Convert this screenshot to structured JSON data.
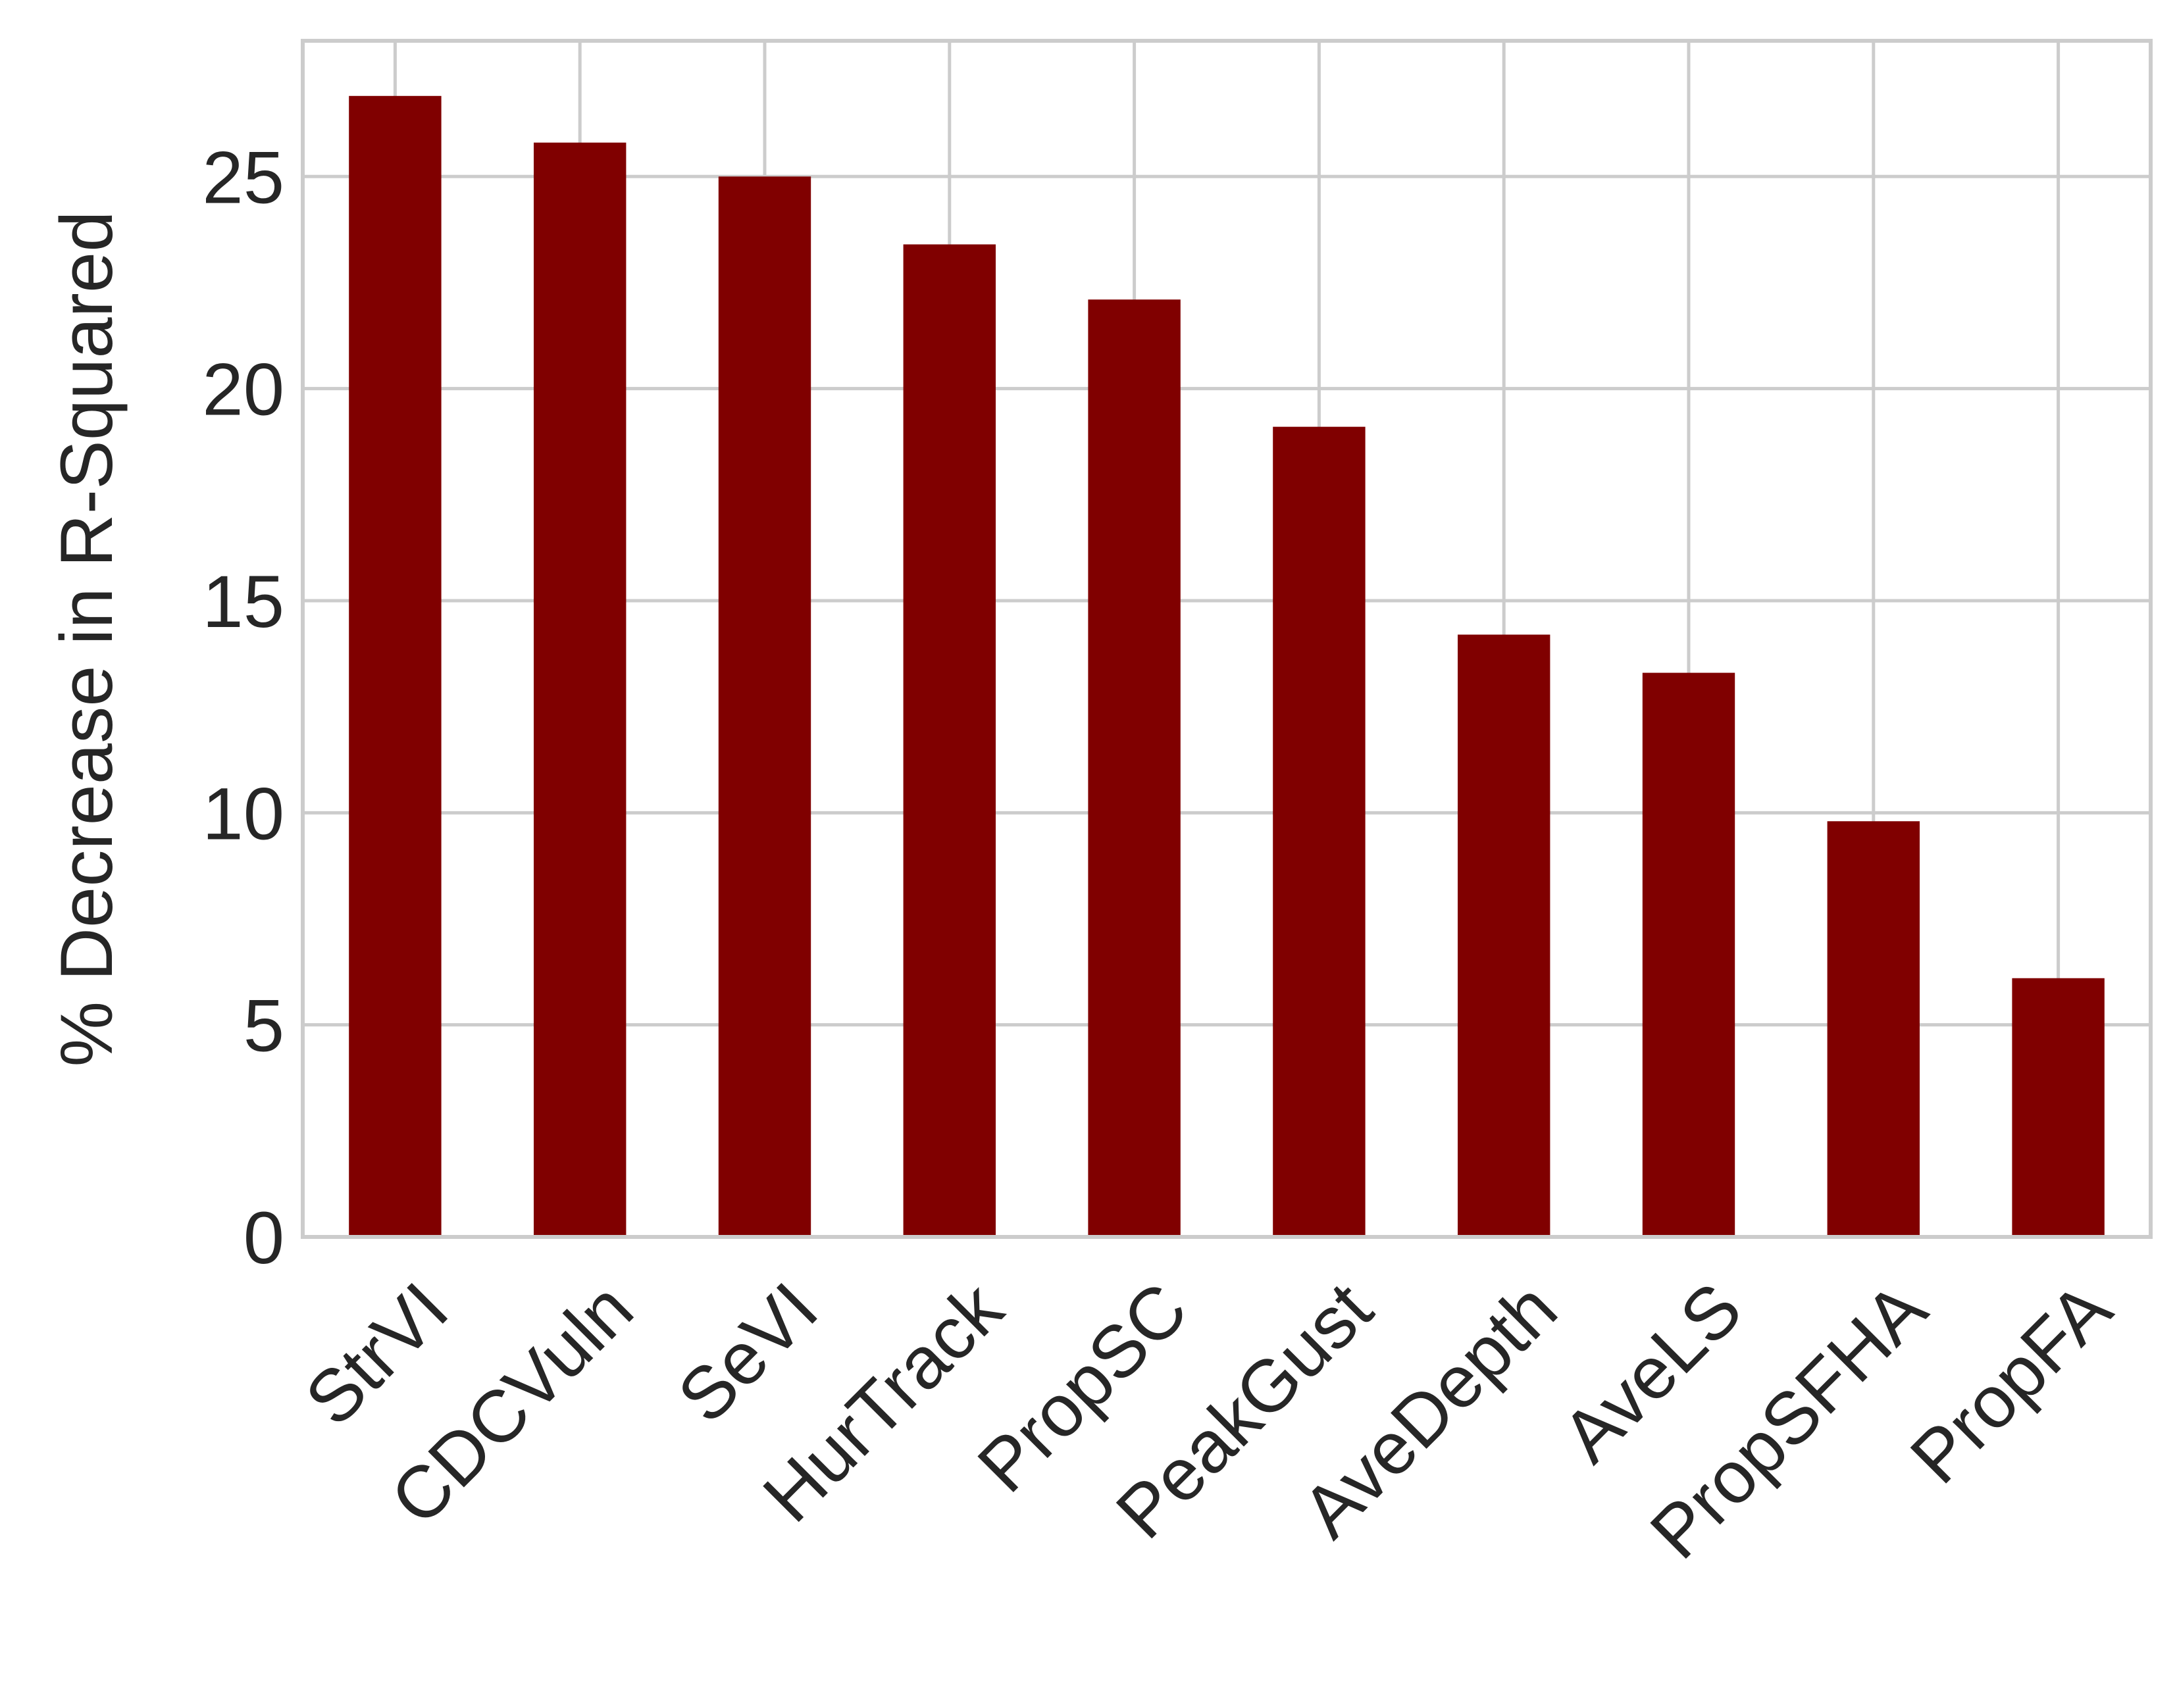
{
  "chart_data": {
    "type": "bar",
    "title": "",
    "xlabel": "",
    "ylabel": "% Decrease in R-Squared",
    "categories": [
      "StrVI",
      "CDCVuln",
      "SeVI",
      "HurTrack",
      "PropSC",
      "PeakGust",
      "AveDepth",
      "AveLS",
      "PropSFHA",
      "PropFA"
    ],
    "values": [
      26.9,
      25.8,
      25.0,
      23.4,
      22.1,
      19.1,
      14.2,
      13.3,
      9.8,
      6.1
    ],
    "ylim": [
      0,
      28.2
    ],
    "yticks": [
      0,
      5,
      10,
      15,
      20,
      25
    ],
    "grid": true,
    "bar_color": "#800000",
    "grid_color": "#cccccc",
    "text_color": "#262626"
  }
}
